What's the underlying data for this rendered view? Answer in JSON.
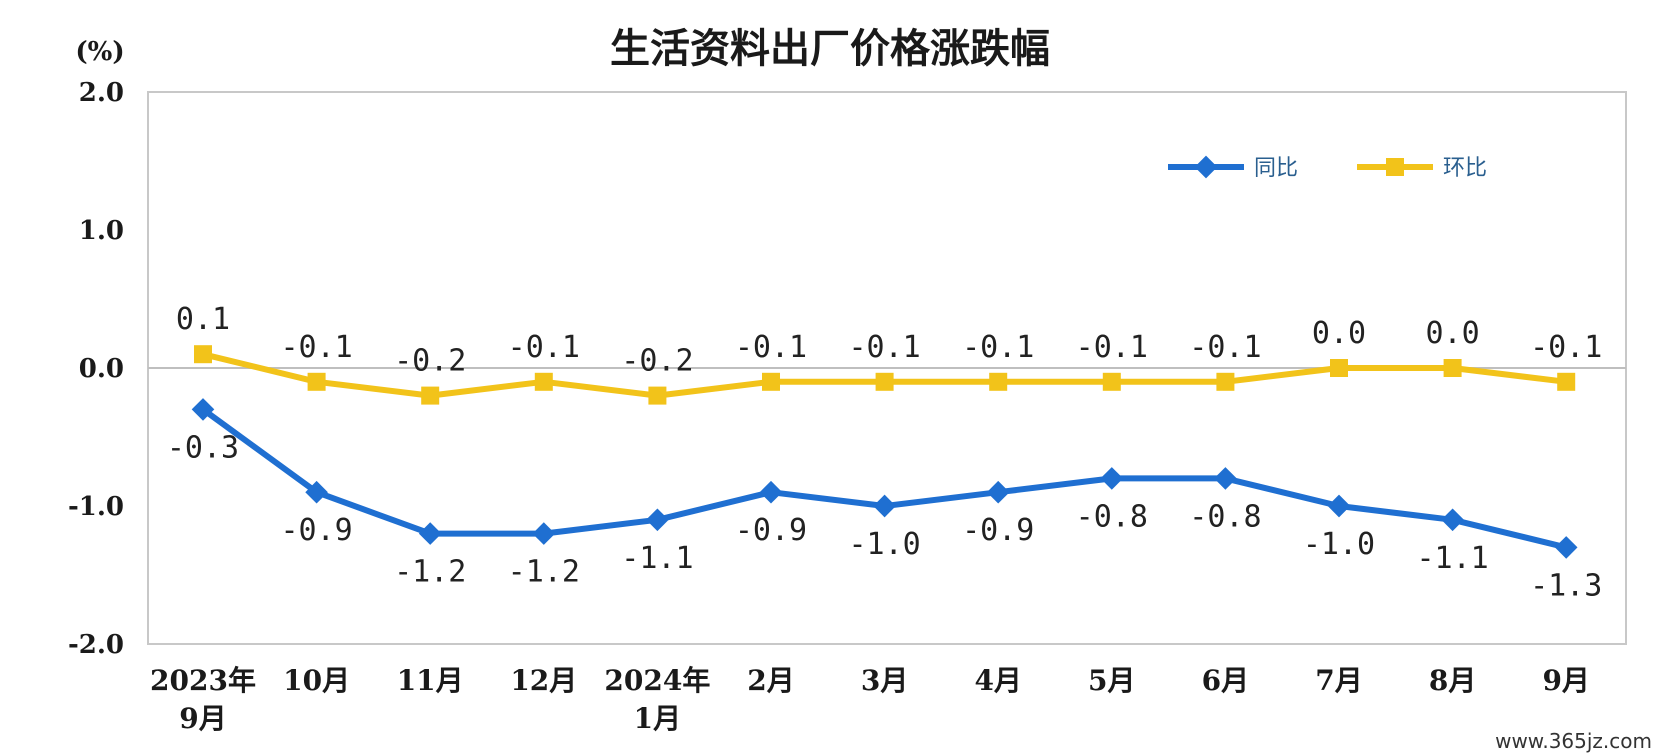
{
  "chart_data": {
    "type": "line",
    "title": "生活资料出厂价格涨跌幅",
    "unit_label": "(%)",
    "ylim": [
      -2.0,
      2.0
    ],
    "y_ticks": [
      "2.0",
      "1.0",
      "0.0",
      "-1.0",
      "-2.0"
    ],
    "y_tick_values": [
      2.0,
      1.0,
      0.0,
      -1.0,
      -2.0
    ],
    "categories": [
      [
        "2023年",
        "9月"
      ],
      [
        "10月"
      ],
      [
        "11月"
      ],
      [
        "12月"
      ],
      [
        "2024年",
        "1月"
      ],
      [
        "2月"
      ],
      [
        "3月"
      ],
      [
        "4月"
      ],
      [
        "5月"
      ],
      [
        "6月"
      ],
      [
        "7月"
      ],
      [
        "8月"
      ],
      [
        "9月"
      ]
    ],
    "series": [
      {
        "name": "同比",
        "color": "#1f6fd1",
        "marker": "diamond",
        "values": [
          -0.3,
          -0.9,
          -1.2,
          -1.2,
          -1.1,
          -0.9,
          -1.0,
          -0.9,
          -0.8,
          -0.8,
          -1.0,
          -1.1,
          -1.3
        ],
        "labels": [
          "-0.3",
          "-0.9",
          "-1.2",
          "-1.2",
          "-1.1",
          "-0.9",
          "-1.0",
          "-0.9",
          "-0.8",
          "-0.8",
          "-1.0",
          "-1.1",
          "-1.3"
        ]
      },
      {
        "name": "环比",
        "color": "#f2c31a",
        "marker": "square",
        "values": [
          0.1,
          -0.1,
          -0.2,
          -0.1,
          -0.2,
          -0.1,
          -0.1,
          -0.1,
          -0.1,
          -0.1,
          0.0,
          0.0,
          -0.1
        ],
        "labels": [
          "0.1",
          "-0.1",
          "-0.2",
          "-0.1",
          "-0.2",
          "-0.1",
          "-0.1",
          "-0.1",
          "-0.1",
          "-0.1",
          "0.0",
          "0.0",
          "-0.1"
        ]
      }
    ],
    "legend_position": "top-right",
    "grid": false,
    "zero_line": true
  },
  "watermark": "www.365jz.com"
}
